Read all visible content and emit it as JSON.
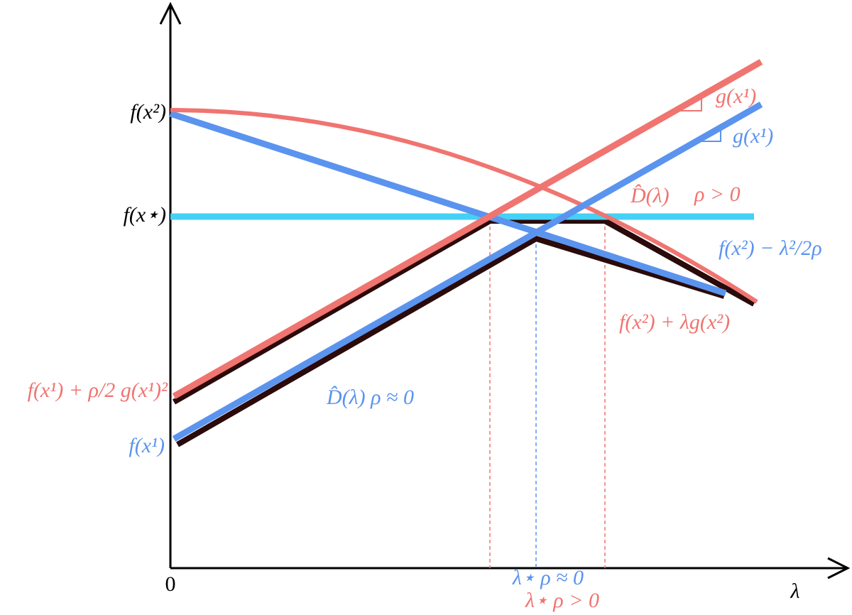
{
  "axes": {
    "origin": "0",
    "x_label": "λ"
  },
  "y_labels": [
    "f(x²)",
    "f(x⋆)",
    "f(x¹) + ρ/2 g(x¹)²",
    "f(x¹)"
  ],
  "curve_labels": [
    "g(x¹)",
    "g(x¹)",
    "D̂(λ)",
    "ρ > 0",
    "f(x²) − λ²/2ρ",
    "f(x²) + λg(x²)",
    "D̂(λ) ρ ≈ 0"
  ],
  "lambda_labels": [
    "λ⋆ ρ ≈ 0",
    "λ⋆ ρ > 0"
  ]
}
